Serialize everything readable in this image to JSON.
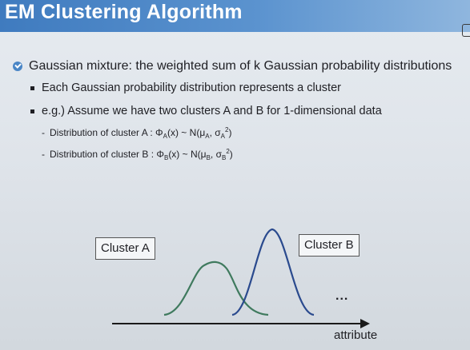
{
  "header": {
    "title": "EM Clustering Algorithm"
  },
  "content": {
    "main_bullet": "Gaussian mixture: the weighted sum of k Gaussian probability distributions",
    "sub_bullets": [
      "Each Gaussian probability distribution represents a cluster",
      "e.g.) Assume we have two clusters A and B for 1-dimensional data"
    ],
    "dist_a": {
      "prefix": "Distribution of cluster A : Φ",
      "sub1": "A",
      "mid1": "(x) ~ N(μ",
      "sub2": "A",
      "mid2": ", σ",
      "sub3": "A",
      "sup": "2",
      "end": ")"
    },
    "dist_b": {
      "prefix": "Distribution of cluster B : Φ",
      "sub1": "B",
      "mid1": "(x) ~ N(μ",
      "sub2": "B",
      "mid2": ", σ",
      "sub3": "B",
      "sup": "2",
      "end": ")"
    }
  },
  "figure": {
    "cluster_a_label": "Cluster A",
    "cluster_b_label": "Cluster B",
    "ellipsis": "...",
    "axis_label": "attribute",
    "colors": {
      "curve_a": "#3f7a5e",
      "curve_b": "#2a4a8e",
      "axis": "#1a1a1a"
    }
  }
}
